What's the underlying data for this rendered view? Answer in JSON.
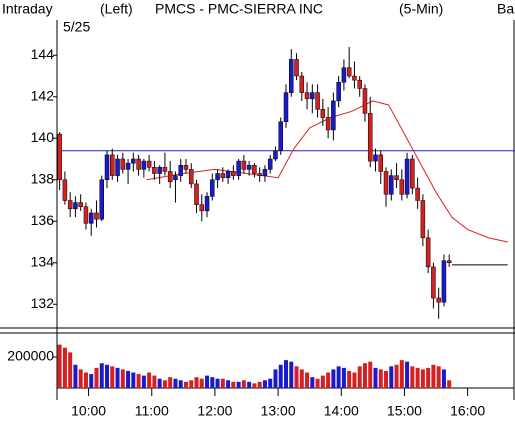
{
  "chart_data": {
    "type": "candlestick",
    "title": "PMCS - PMC-SIERRA INC",
    "subtitle": "(5-Min)",
    "header_left": "Intraday",
    "header_axis": "(Left)",
    "header_right": "Ba",
    "date_label": "5/25",
    "up_color": "#1a1acc",
    "down_color": "#d42020",
    "flat_color": "#20c020",
    "x": [
      570,
      575,
      580,
      585,
      590,
      595,
      600,
      605,
      610,
      615,
      620,
      625,
      630,
      635,
      640,
      645,
      650,
      655,
      660,
      665,
      670,
      675,
      680,
      685,
      690,
      695,
      700,
      705,
      710,
      715,
      720,
      725,
      730,
      735,
      740,
      745,
      750,
      755,
      760,
      765,
      770,
      775,
      780,
      785,
      790,
      795,
      800,
      805,
      810,
      815,
      820,
      825,
      830,
      835,
      840,
      845,
      850,
      855,
      860,
      865,
      870,
      875,
      880,
      885,
      890,
      895,
      900,
      905,
      910,
      915,
      920,
      925,
      930,
      935,
      940
    ],
    "open": [
      140.2,
      138.0,
      137.0,
      136.6,
      136.9,
      136.7,
      135.9,
      136.4,
      136.1,
      138.0,
      139.2,
      138.2,
      139.0,
      138.5,
      138.8,
      139.0,
      138.5,
      138.9,
      138.6,
      138.3,
      138.6,
      138.4,
      138.0,
      138.2,
      138.7,
      138.5,
      137.8,
      136.8,
      136.5,
      137.2,
      138.0,
      138.3,
      138.1,
      138.4,
      138.2,
      138.9,
      138.5,
      138.7,
      138.3,
      138.2,
      138.5,
      139.0,
      139.4,
      140.8,
      142.2,
      143.8,
      143.0,
      142.2,
      141.9,
      142.2,
      141.4,
      141.0,
      140.4,
      141.8,
      142.7,
      143.4,
      143.0,
      142.8,
      142.4,
      141.2,
      138.9,
      139.2,
      138.4,
      137.3,
      138.2,
      138.0,
      137.3,
      139.0,
      137.6,
      137.0,
      135.2,
      133.8,
      132.3,
      132.1,
      134.1
    ],
    "high": [
      140.3,
      138.4,
      137.4,
      137.2,
      137.3,
      136.9,
      136.6,
      137.0,
      138.2,
      139.4,
      139.5,
      139.2,
      139.3,
      139.0,
      139.3,
      139.2,
      139.0,
      139.2,
      138.9,
      138.7,
      139.3,
      138.9,
      138.4,
      139.0,
      139.0,
      138.8,
      138.0,
      137.3,
      137.4,
      138.3,
      138.5,
      138.6,
      138.5,
      138.7,
      139.0,
      139.2,
      138.9,
      138.8,
      138.6,
      138.7,
      139.2,
      139.6,
      141.0,
      142.6,
      144.3,
      144.1,
      143.2,
      142.7,
      142.6,
      142.6,
      141.9,
      141.5,
      142.2,
      143.0,
      143.8,
      144.4,
      143.7,
      143.0,
      142.6,
      142.0,
      139.5,
      139.4,
      138.6,
      138.5,
      138.8,
      138.5,
      139.3,
      139.2,
      138.1,
      137.3,
      135.6,
      134.0,
      132.8,
      134.4,
      134.4
    ],
    "low": [
      137.5,
      136.8,
      136.2,
      136.2,
      136.5,
      135.6,
      135.3,
      135.7,
      136.0,
      137.6,
      138.0,
      137.9,
      138.3,
      137.8,
      138.4,
      138.2,
      138.1,
      138.4,
      138.0,
      137.8,
      138.2,
      137.6,
      136.9,
      137.9,
      138.3,
      137.6,
      136.4,
      136.0,
      136.2,
      137.0,
      137.6,
      137.9,
      137.8,
      138.0,
      138.0,
      138.3,
      138.2,
      138.1,
      137.9,
      137.9,
      138.3,
      138.9,
      139.2,
      140.5,
      142.0,
      142.8,
      141.8,
      141.4,
      141.2,
      141.0,
      140.6,
      140.0,
      139.9,
      141.5,
      142.3,
      142.9,
      142.4,
      142.0,
      140.8,
      138.6,
      138.4,
      137.8,
      136.7,
      137.0,
      137.6,
      137.0,
      137.1,
      137.3,
      136.6,
      134.8,
      133.5,
      131.8,
      131.3,
      131.9,
      133.8
    ],
    "close": [
      138.0,
      137.0,
      136.6,
      136.9,
      136.7,
      135.9,
      136.4,
      136.1,
      138.0,
      139.2,
      138.2,
      139.0,
      138.5,
      138.8,
      139.0,
      138.5,
      138.9,
      138.6,
      138.3,
      138.6,
      138.4,
      137.9,
      138.2,
      138.7,
      138.5,
      137.8,
      136.8,
      136.5,
      137.2,
      138.0,
      138.3,
      138.1,
      138.4,
      138.2,
      138.9,
      138.5,
      138.7,
      138.3,
      138.2,
      138.5,
      139.0,
      139.4,
      140.8,
      142.2,
      143.8,
      143.0,
      142.2,
      141.9,
      142.2,
      141.4,
      141.0,
      140.4,
      141.8,
      142.7,
      143.4,
      143.0,
      142.8,
      142.4,
      141.2,
      138.9,
      139.2,
      138.4,
      137.3,
      138.2,
      138.0,
      137.3,
      139.0,
      137.6,
      137.0,
      135.2,
      133.8,
      132.3,
      132.1,
      134.1,
      134.0
    ],
    "volume": [
      280000,
      260000,
      230000,
      150000,
      120000,
      100000,
      90000,
      130000,
      160000,
      150000,
      140000,
      130000,
      120000,
      110000,
      100000,
      90000,
      80000,
      100000,
      80000,
      60000,
      50000,
      70000,
      60000,
      50000,
      40000,
      50000,
      70000,
      60000,
      80000,
      70000,
      60000,
      60000,
      50000,
      40000,
      40000,
      50000,
      40000,
      30000,
      40000,
      50000,
      60000,
      120000,
      150000,
      180000,
      170000,
      140000,
      120000,
      100000,
      70000,
      60000,
      80000,
      100000,
      120000,
      140000,
      130000,
      110000,
      100000,
      140000,
      160000,
      170000,
      130000,
      120000,
      110000,
      140000,
      150000,
      180000,
      170000,
      140000,
      130000,
      120000,
      130000,
      150000,
      140000,
      120000,
      50000
    ],
    "moving_average": {
      "color": "#e02020",
      "x": [
        655,
        690,
        720,
        750,
        780,
        795,
        810,
        830,
        850,
        870,
        885,
        900,
        915,
        930,
        945,
        960,
        980,
        998
      ],
      "values": [
        138.0,
        138.3,
        138.5,
        138.3,
        138.1,
        139.5,
        140.5,
        141.0,
        141.3,
        141.8,
        141.6,
        140.2,
        138.8,
        137.4,
        136.2,
        135.6,
        135.2,
        135.0
      ]
    },
    "reference_line": {
      "value": 139.4,
      "color": "#2020c0"
    },
    "last_price": {
      "value": 133.9,
      "x": [
        945,
        998
      ]
    },
    "xlim": [
      570,
      1005
    ],
    "xticks": [
      {
        "value": 600,
        "label": "10:00"
      },
      {
        "value": 660,
        "label": "11:00"
      },
      {
        "value": 720,
        "label": "12:00"
      },
      {
        "value": 780,
        "label": "13:00"
      },
      {
        "value": 840,
        "label": "14:00"
      },
      {
        "value": 900,
        "label": "15:00"
      },
      {
        "value": 960,
        "label": "16:00"
      }
    ],
    "ylim": [
      131.0,
      145.7
    ],
    "yticks": [
      132,
      134,
      136,
      138,
      140,
      142,
      144
    ],
    "volume_ylim": [
      0,
      310000
    ],
    "volume_yticks": [
      200000
    ]
  }
}
